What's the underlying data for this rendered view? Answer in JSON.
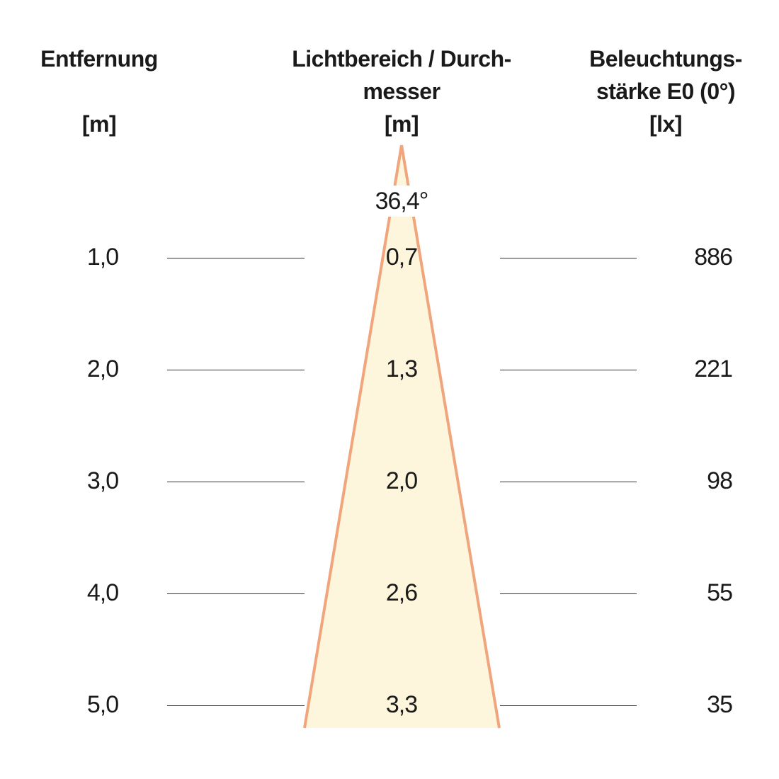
{
  "headers": {
    "distance": {
      "line1": "Entfernung",
      "unit": "[m]"
    },
    "diameter": {
      "line1": "Lichtbereich / Durch-",
      "line2": "messer",
      "unit": "[m]"
    },
    "illuminance": {
      "line1": "Beleuchtungs-",
      "line2": "stärke E0 (0°)",
      "unit": "[lx]"
    }
  },
  "beam_angle": "36,4°",
  "rows": [
    {
      "distance": "1,0",
      "diameter": "0,7",
      "illuminance": "886"
    },
    {
      "distance": "2,0",
      "diameter": "1,3",
      "illuminance": "221"
    },
    {
      "distance": "3,0",
      "diameter": "2,0",
      "illuminance": "98"
    },
    {
      "distance": "4,0",
      "diameter": "2,6",
      "illuminance": "55"
    },
    {
      "distance": "5,0",
      "diameter": "3,3",
      "illuminance": "35"
    }
  ],
  "colors": {
    "beam_fill": "#fdf6dc",
    "beam_edge": "#f0a57c",
    "rule": "#333333"
  }
}
